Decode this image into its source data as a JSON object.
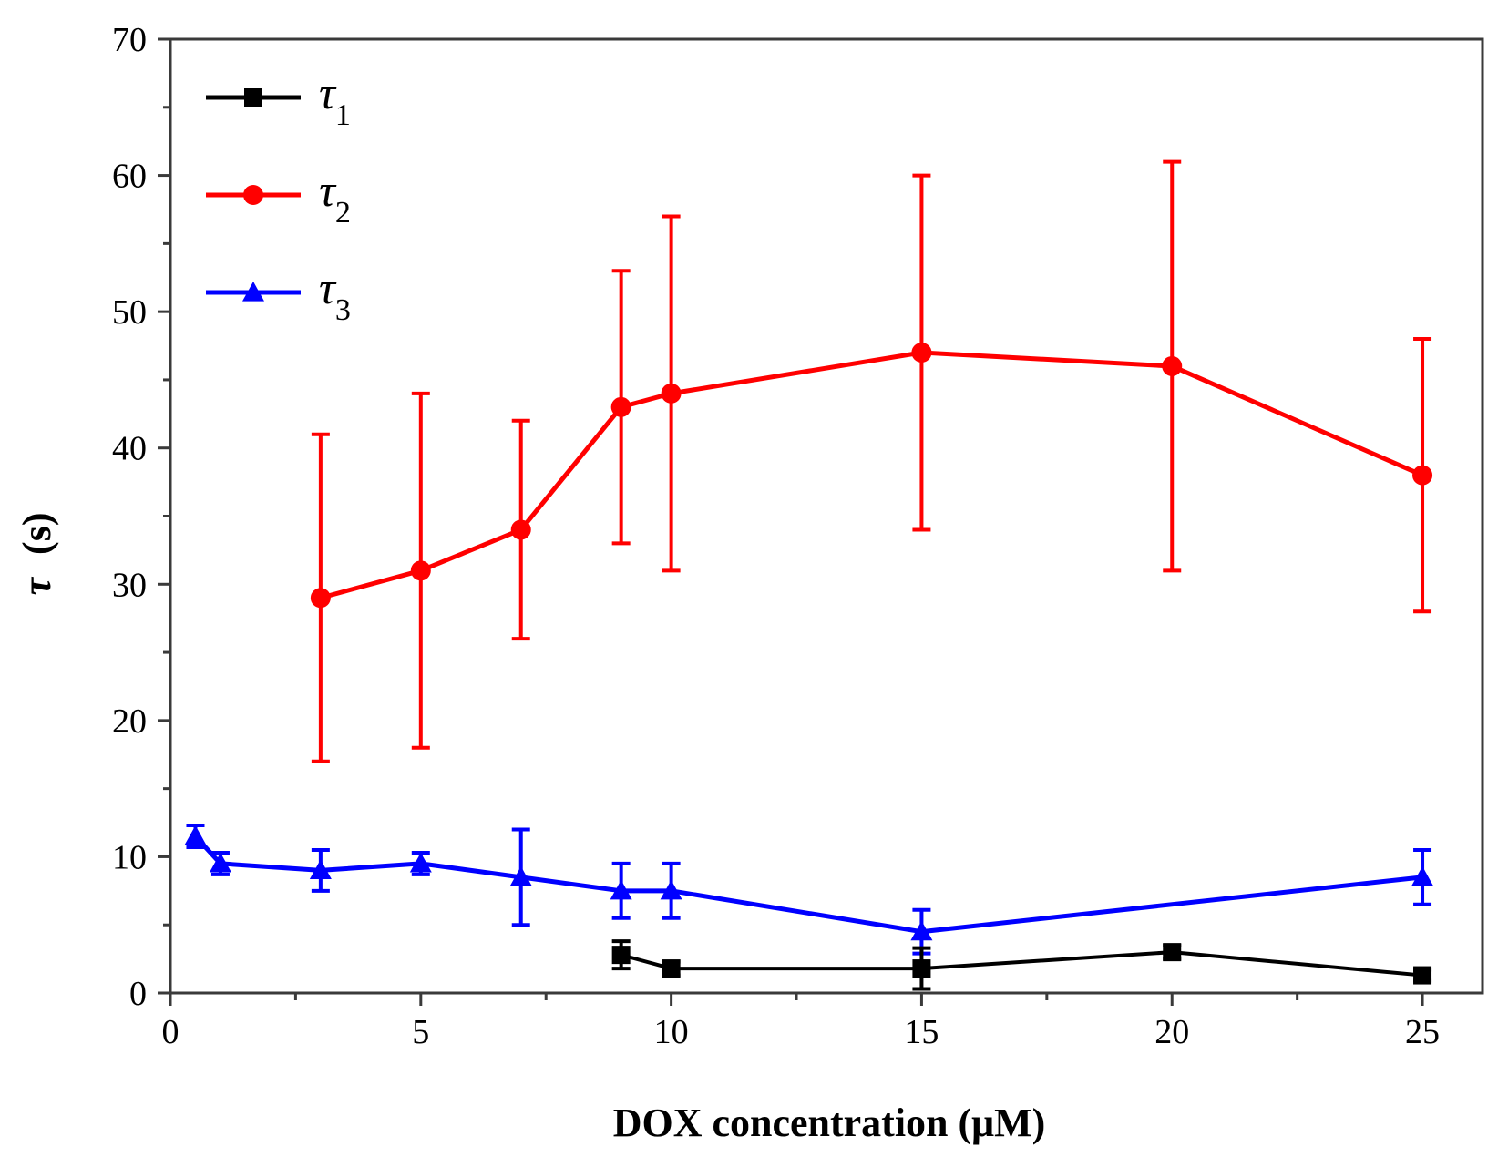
{
  "chart_data": {
    "type": "line",
    "title": "",
    "xlabel": "DOX concentration (μM)",
    "ylabel_symbol": "τ",
    "ylabel_unit": "(s)",
    "xlim": [
      0,
      26.2
    ],
    "ylim": [
      0,
      70
    ],
    "xticks": [
      0,
      5,
      10,
      15,
      20,
      25
    ],
    "yticks": [
      0,
      10,
      20,
      30,
      40,
      50,
      60,
      70
    ],
    "grid": false,
    "legend_position": "top-left",
    "series": [
      {
        "name": "τ",
        "subscript": "1",
        "color": "#000000",
        "marker": "square",
        "x": [
          9,
          10,
          15,
          20,
          25
        ],
        "y": [
          2.8,
          1.8,
          1.8,
          3.0,
          1.3
        ],
        "err": [
          1.0,
          0.5,
          1.5,
          0.5,
          0.4
        ]
      },
      {
        "name": "τ",
        "subscript": "2",
        "color": "#ff0000",
        "marker": "circle",
        "x": [
          3,
          5,
          7,
          9,
          10,
          15,
          20,
          25
        ],
        "y": [
          29,
          31,
          34,
          43,
          44,
          47,
          46,
          38
        ],
        "err": [
          12,
          13,
          8,
          10,
          13,
          13,
          15,
          10
        ]
      },
      {
        "name": "τ",
        "subscript": "3",
        "color": "#0000ff",
        "marker": "triangle",
        "x": [
          0.5,
          1,
          3,
          5,
          7,
          9,
          10,
          15,
          20,
          25
        ],
        "y": [
          11.5,
          9.5,
          9.0,
          9.5,
          8.5,
          7.5,
          7.5,
          4.5,
          null,
          8.5
        ],
        "err": [
          0.8,
          0.8,
          1.5,
          0.8,
          3.5,
          2.0,
          2.0,
          1.6,
          null,
          2.0
        ]
      }
    ]
  }
}
